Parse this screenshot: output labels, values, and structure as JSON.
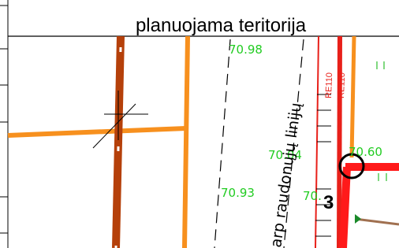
{
  "header": {
    "title": "planuojama teritorija"
  },
  "labels": {
    "elevations": [
      "70.98",
      "70.04",
      "70.60",
      "70.93",
      "70."
    ],
    "road_note": "arp raudonųjų linijų",
    "plot_number": "3",
    "line_codes": [
      "RE110",
      "RE110"
    ]
  }
}
